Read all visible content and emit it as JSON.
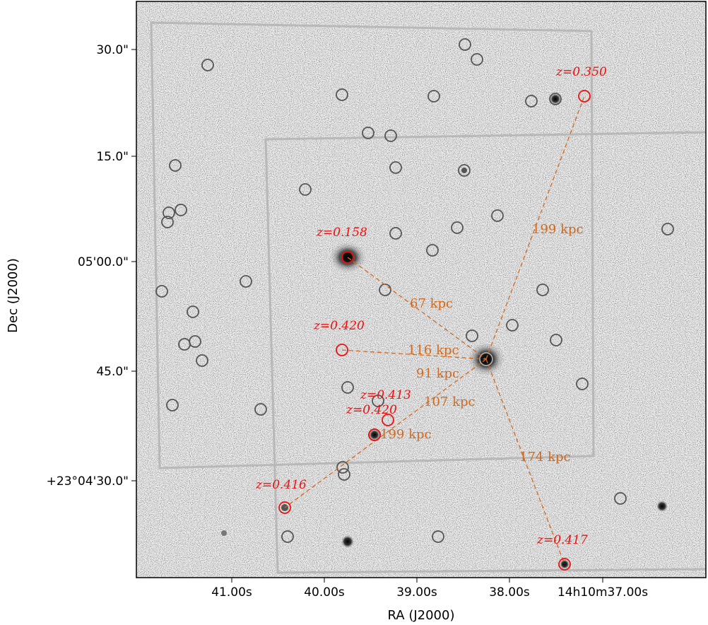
{
  "axes": {
    "xlabel": "RA (J2000)",
    "ylabel": "Dec (J2000)",
    "x_ticks": [
      "41.00s",
      "40.00s",
      "39.00s",
      "38.00s",
      "14h10m37.00s"
    ],
    "y_ticks": [
      "30.0\"",
      "15.0\"",
      "05'00.0\"",
      "45.0\"",
      "+23°04'30.0\""
    ]
  },
  "colors": {
    "frame": "#000000",
    "field_boundary": "#b8b8b8",
    "source_marker": "#555555",
    "redshift_marker": "#ee1111",
    "separation_line": "#d2691e"
  },
  "redshift_labels": [
    "z=0.350",
    "z=0.158",
    "z=0.420",
    "z=0.413",
    "z=0.420",
    "z=0.416",
    "z=0.417"
  ],
  "separation_labels": [
    "199 kpc",
    "67 kpc",
    "116 kpc",
    "91 kpc",
    "107 kpc",
    "199 kpc",
    "174 kpc"
  ]
}
